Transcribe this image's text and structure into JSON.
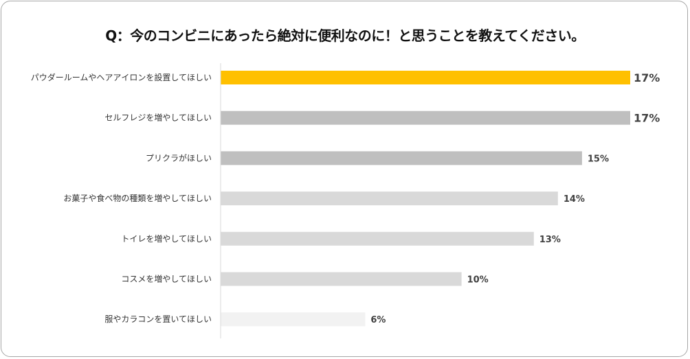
{
  "chart_data": {
    "type": "bar",
    "orientation": "horizontal",
    "title": "Q：今のコンビニにあったら絶対に便利なのに！と思うことを教えてください。",
    "categories": [
      "パウダールームやヘアアイロンを設置してほしい",
      "セルフレジを増やしてほしい",
      "プリクラがほしい",
      "お菓子や食べ物の種類を増やしてほしい",
      "トイレを増やしてほしい",
      "コスメを増やしてほしい",
      "服やカラコンを置いてほしい"
    ],
    "values": [
      17,
      17,
      15,
      14,
      13,
      10,
      6
    ],
    "data_labels": [
      "17%",
      "17%",
      "15%",
      "14%",
      "13%",
      "10%",
      "6%"
    ],
    "colors": [
      "#FFC000",
      "#BFBFBF",
      "#BFBFBF",
      "#D9D9D9",
      "#D9D9D9",
      "#D9D9D9",
      "#F2F2F2"
    ],
    "xlim": [
      0,
      17
    ],
    "grid": false,
    "legend": "none"
  }
}
